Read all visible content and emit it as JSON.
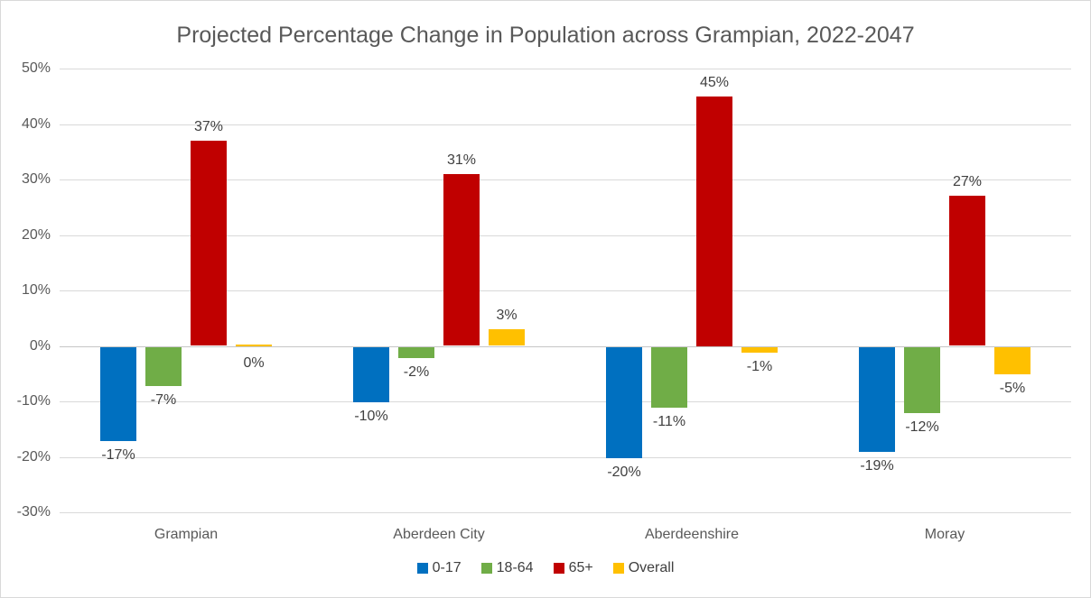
{
  "title": "Projected Percentage Change in Population across Grampian, 2022-2047",
  "chart_data": {
    "type": "bar",
    "title": "Projected Percentage Change in Population across Grampian, 2022-2047",
    "categories": [
      "Grampian",
      "Aberdeen City",
      "Aberdeenshire",
      "Moray"
    ],
    "series": [
      {
        "name": "0-17",
        "color": "#0070C0",
        "values": [
          -17,
          -10,
          -20,
          -19
        ],
        "labels": [
          "-17%",
          "-10%",
          "-20%",
          "-19%"
        ]
      },
      {
        "name": "18-64",
        "color": "#70AD47",
        "values": [
          -7,
          -2,
          -11,
          -12
        ],
        "labels": [
          "-7%",
          "-2%",
          "-11%",
          "-12%"
        ]
      },
      {
        "name": "65+",
        "color": "#C00000",
        "values": [
          37,
          31,
          45,
          27
        ],
        "labels": [
          "37%",
          "31%",
          "45%",
          "27%"
        ]
      },
      {
        "name": "Overall",
        "color": "#FFC000",
        "values": [
          0,
          3,
          -1,
          -5
        ],
        "labels": [
          "0%",
          "3%",
          "-1%",
          "-5%"
        ]
      }
    ],
    "y_ticks": [
      "50%",
      "40%",
      "30%",
      "20%",
      "10%",
      "0%",
      "-10%",
      "-20%",
      "-30%"
    ],
    "ylim": [
      -30,
      50
    ],
    "xlabel": "",
    "ylabel": "",
    "grid": true,
    "legend_position": "bottom"
  },
  "colors": {
    "background": "#FFFFFF",
    "border": "#D9D9D9",
    "gridline": "#D9D9D9",
    "title_text": "#595959",
    "axis_text": "#595959",
    "data_label_text": "#404040"
  }
}
